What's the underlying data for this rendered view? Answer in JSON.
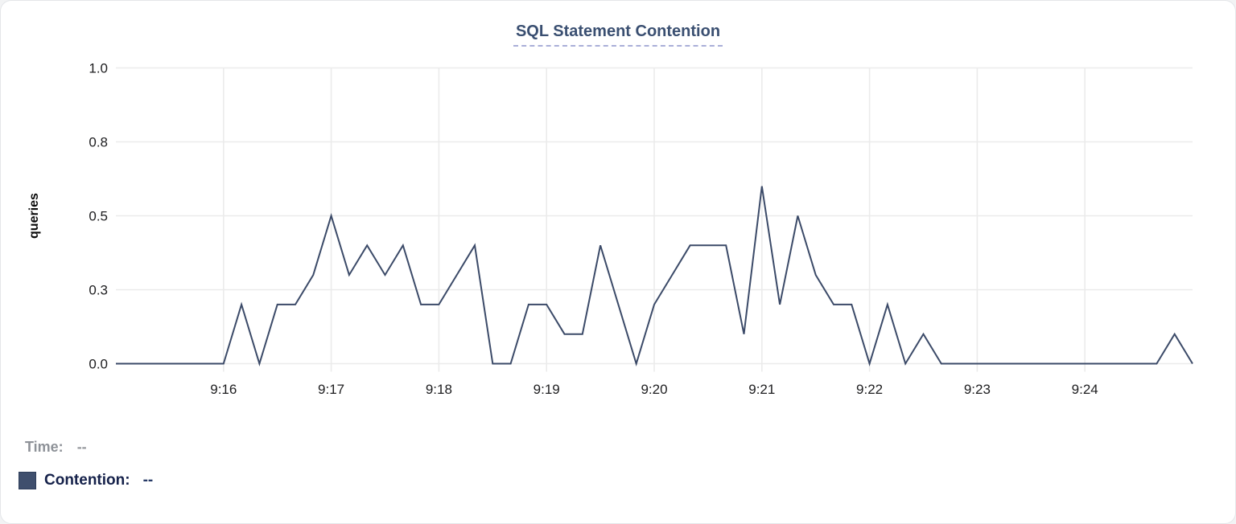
{
  "chart_data": {
    "type": "line",
    "title": "SQL Statement Contention",
    "xlabel": "",
    "ylabel": "queries",
    "ylim": [
      0,
      1
    ],
    "grid": true,
    "legend_position": "bottom-left",
    "x_start_time": "9:15:00",
    "x_end_time": "9:25:00",
    "x_interval_seconds": 10,
    "x_ticks": [
      {
        "label": "9:16",
        "index": 6
      },
      {
        "label": "9:17",
        "index": 12
      },
      {
        "label": "9:18",
        "index": 18
      },
      {
        "label": "9:19",
        "index": 24
      },
      {
        "label": "9:20",
        "index": 30
      },
      {
        "label": "9:21",
        "index": 36
      },
      {
        "label": "9:22",
        "index": 42
      },
      {
        "label": "9:23",
        "index": 48
      },
      {
        "label": "9:24",
        "index": 54
      }
    ],
    "y_ticks": [
      {
        "label": "1.0",
        "value": 1
      },
      {
        "label": "0.8",
        "value": 0.75
      },
      {
        "label": "0.5",
        "value": 0.5
      },
      {
        "label": "0.3",
        "value": 0.25
      },
      {
        "label": "0.0",
        "value": 0
      }
    ],
    "series": [
      {
        "name": "Contention",
        "color": "#3b4a68",
        "values": [
          0,
          0,
          0,
          0,
          0,
          0,
          0,
          0.2,
          0,
          0.2,
          0.2,
          0.3,
          0.5,
          0.3,
          0.4,
          0.3,
          0.4,
          0.2,
          0.2,
          0.3,
          0.4,
          0,
          0,
          0.2,
          0.2,
          0.1,
          0.1,
          0.4,
          0.2,
          0,
          0.2,
          0.3,
          0.4,
          0.4,
          0.4,
          0.1,
          0.6,
          0.2,
          0.5,
          0.3,
          0.2,
          0.2,
          0,
          0.2,
          0,
          0.1,
          0,
          0,
          0,
          0,
          0,
          0,
          0,
          0,
          0,
          0,
          0,
          0,
          0,
          0.1,
          0
        ]
      }
    ]
  },
  "legend": {
    "time_label": "Time:",
    "time_value": "--",
    "contention_label": "Contention:",
    "contention_value": "--"
  },
  "colors": {
    "line": "#3b4a68",
    "title_text": "#3a4f71",
    "title_underline": "#a9aed8",
    "swatch_fill": "#3f4f6d",
    "swatch_border": "#2e3e5a",
    "gridline": "#ebebeb",
    "tick_text": "#1d1d1f",
    "time_label_text": "#8e9298",
    "contention_label_text": "#15214a"
  }
}
